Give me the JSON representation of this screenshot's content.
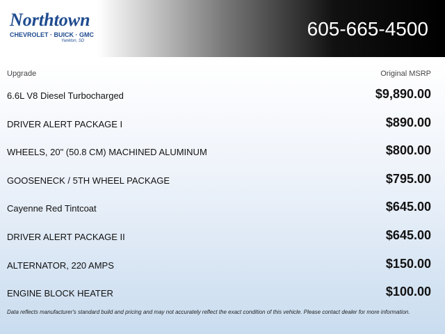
{
  "header": {
    "logo": {
      "name": "Northtown",
      "brands": "CHEVROLET · BUICK · GMC",
      "location": "Yankton, SD"
    },
    "phone": "605-665-4500"
  },
  "table": {
    "columns": [
      "Upgrade",
      "Original MSRP"
    ],
    "rows": [
      [
        "6.6L V8 Diesel Turbocharged",
        "$9,890.00"
      ],
      [
        "DRIVER ALERT PACKAGE I",
        "$890.00"
      ],
      [
        "WHEELS, 20\" (50.8 CM) MACHINED ALUMINUM",
        "$800.00"
      ],
      [
        "GOOSENECK / 5TH WHEEL PACKAGE",
        "$795.00"
      ],
      [
        "Cayenne Red Tintcoat",
        "$645.00"
      ],
      [
        "DRIVER ALERT PACKAGE II",
        "$645.00"
      ],
      [
        "ALTERNATOR, 220 AMPS",
        "$150.00"
      ],
      [
        "ENGINE BLOCK HEATER",
        "$100.00"
      ]
    ]
  },
  "footer": {
    "disclaimer": "Data reflects manufacturer's standard build and pricing and may not accurately reflect the exact condition of this vehicle. Please contact dealer for more information."
  }
}
